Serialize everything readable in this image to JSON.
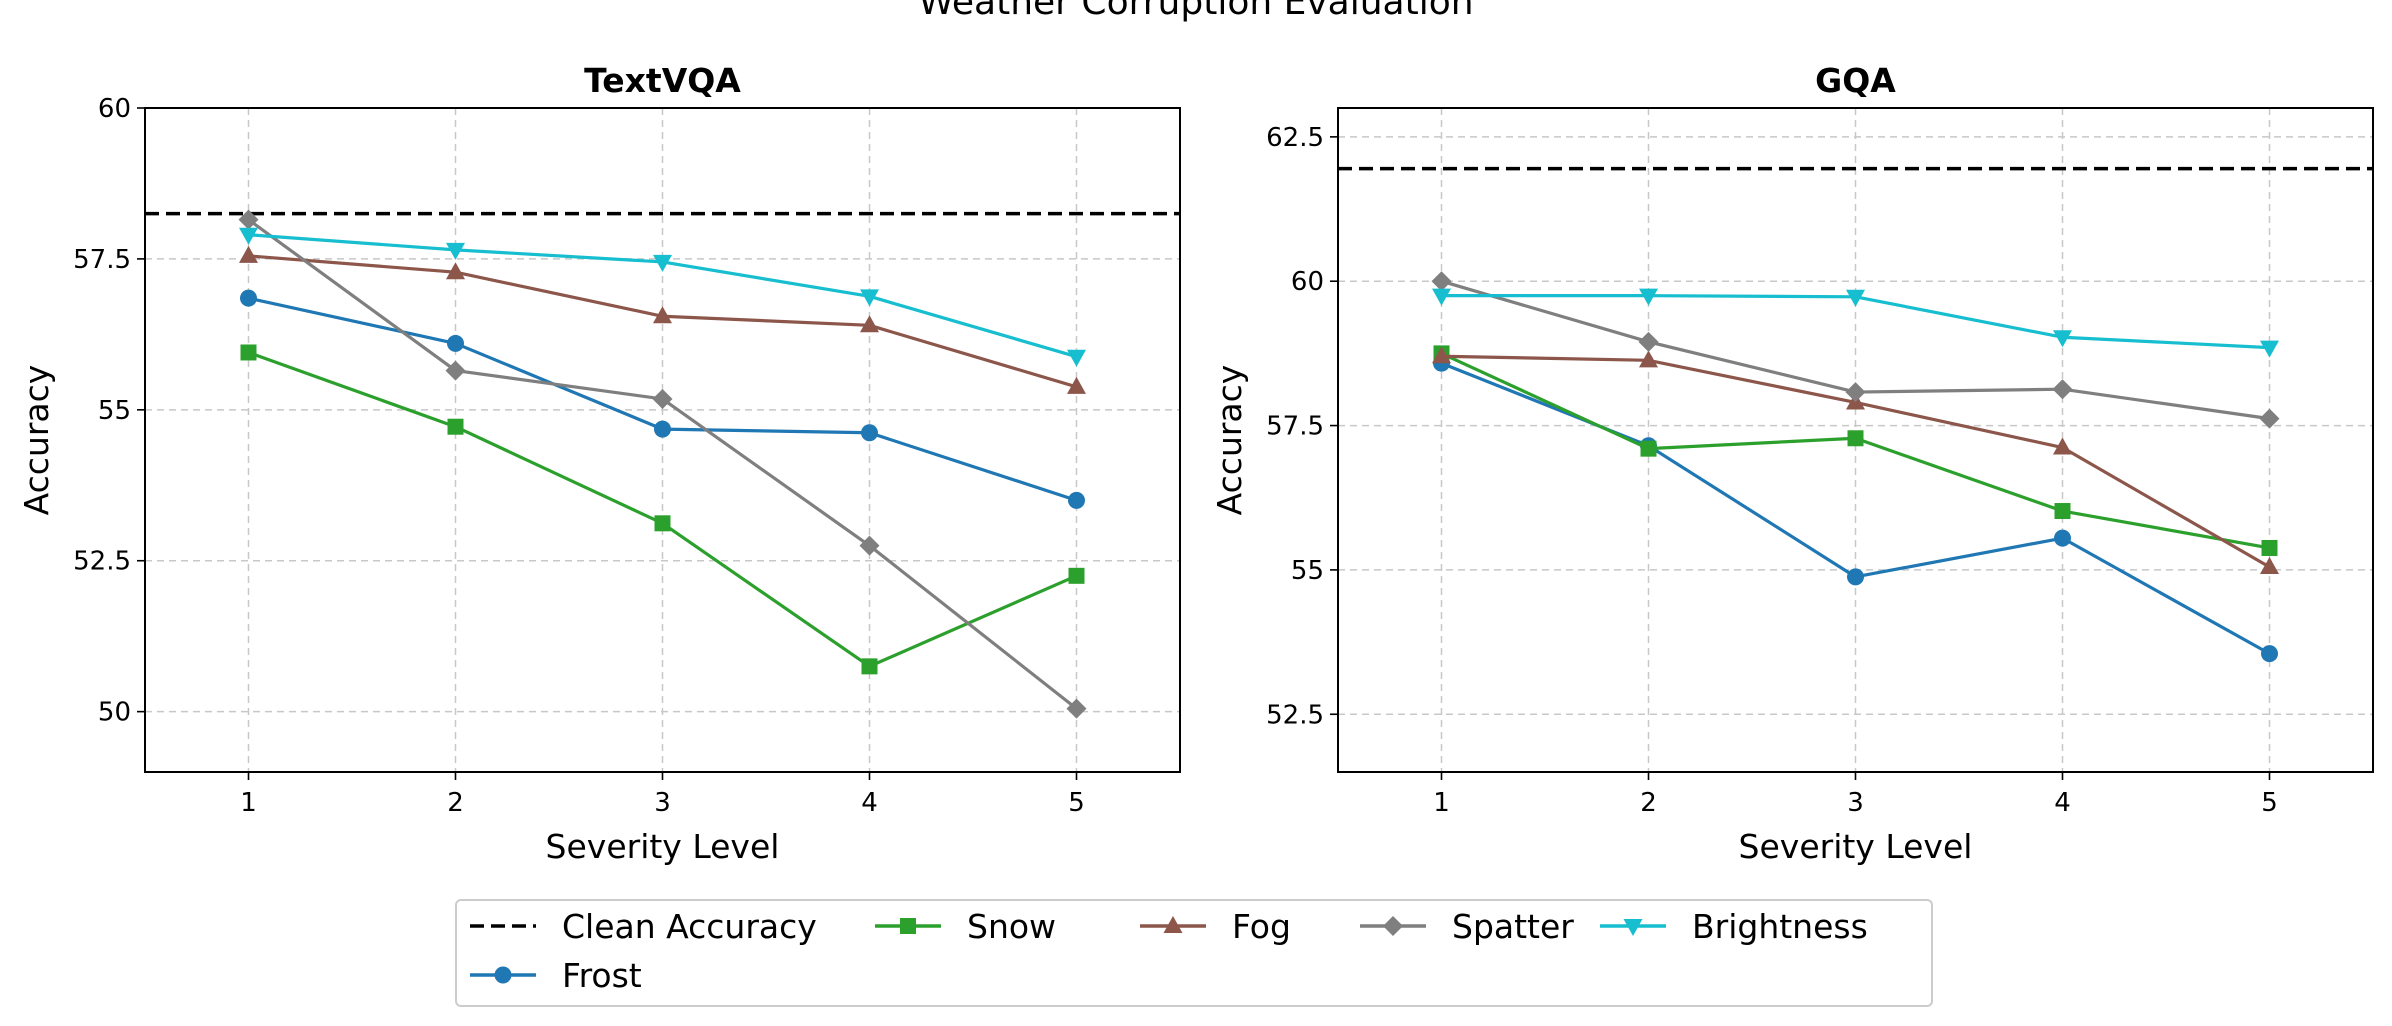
{
  "figure": {
    "title": "Weather Corruption Evaluation"
  },
  "chart_data": [
    {
      "type": "line",
      "title": "TextVQA",
      "xlabel": "Severity Level",
      "ylabel": "Accuracy",
      "x": [
        1,
        2,
        3,
        4,
        5
      ],
      "xticks": [
        "1",
        "2",
        "3",
        "4",
        "5"
      ],
      "xlim": [
        0.5,
        5.5
      ],
      "ylim": [
        49,
        60
      ],
      "yticks": [
        50,
        52.5,
        55,
        57.5,
        60
      ],
      "ytick_labels": [
        "50",
        "52.5",
        "55",
        "57.5",
        "60"
      ],
      "grid": true,
      "clean_accuracy": 58.25,
      "series": [
        {
          "name": "Frost",
          "values": [
            56.85,
            56.1,
            54.68,
            54.62,
            53.5
          ]
        },
        {
          "name": "Snow",
          "values": [
            55.95,
            54.72,
            53.12,
            50.75,
            52.25
          ]
        },
        {
          "name": "Fog",
          "values": [
            57.55,
            57.28,
            56.55,
            56.4,
            55.38
          ]
        },
        {
          "name": "Spatter",
          "values": [
            58.15,
            55.65,
            55.18,
            52.75,
            50.05
          ]
        },
        {
          "name": "Brightness",
          "values": [
            57.9,
            57.65,
            57.45,
            56.88,
            55.88
          ]
        }
      ]
    },
    {
      "type": "line",
      "title": "GQA",
      "xlabel": "Severity Level",
      "ylabel": "Accuracy",
      "x": [
        1,
        2,
        3,
        4,
        5
      ],
      "xticks": [
        "1",
        "2",
        "3",
        "4",
        "5"
      ],
      "xlim": [
        0.5,
        5.5
      ],
      "ylim": [
        51.5,
        63.0
      ],
      "yticks": [
        52.5,
        55,
        57.5,
        60,
        62.5
      ],
      "ytick_labels": [
        "52.5",
        "55",
        "57.5",
        "60",
        "62.5"
      ],
      "grid": true,
      "clean_accuracy": 61.95,
      "series": [
        {
          "name": "Frost",
          "values": [
            58.58,
            57.15,
            54.88,
            55.55,
            53.55
          ]
        },
        {
          "name": "Snow",
          "values": [
            58.75,
            57.1,
            57.28,
            56.02,
            55.38
          ]
        },
        {
          "name": "Fog",
          "values": [
            58.7,
            58.63,
            57.9,
            57.12,
            55.05
          ]
        },
        {
          "name": "Spatter",
          "values": [
            60.0,
            58.95,
            58.08,
            58.13,
            57.62
          ]
        },
        {
          "name": "Brightness",
          "values": [
            59.75,
            59.75,
            59.73,
            59.03,
            58.85
          ]
        }
      ]
    }
  ],
  "legend": {
    "placement": "bottom-center",
    "entries": [
      {
        "label": "Clean Accuracy",
        "color": "#000000",
        "marker": "none",
        "dashed": true
      },
      {
        "label": "Snow",
        "color": "#2ca02c",
        "marker": "square",
        "dashed": false
      },
      {
        "label": "Fog",
        "color": "#8c564b",
        "marker": "triangle-up",
        "dashed": false
      },
      {
        "label": "Spatter",
        "color": "#7f7f7f",
        "marker": "diamond",
        "dashed": false
      },
      {
        "label": "Brightness",
        "color": "#17becf",
        "marker": "triangle-down",
        "dashed": false
      },
      {
        "label": "Frost",
        "color": "#1f77b4",
        "marker": "circle",
        "dashed": false
      }
    ]
  },
  "styles": {
    "Frost": {
      "color": "#1f77b4",
      "marker": "circle"
    },
    "Snow": {
      "color": "#2ca02c",
      "marker": "square"
    },
    "Fog": {
      "color": "#8c564b",
      "marker": "triangle-up"
    },
    "Spatter": {
      "color": "#7f7f7f",
      "marker": "diamond"
    },
    "Brightness": {
      "color": "#17becf",
      "marker": "triangle-down"
    },
    "clean_color": "#000000",
    "grid_color": "#c8c8c8"
  }
}
